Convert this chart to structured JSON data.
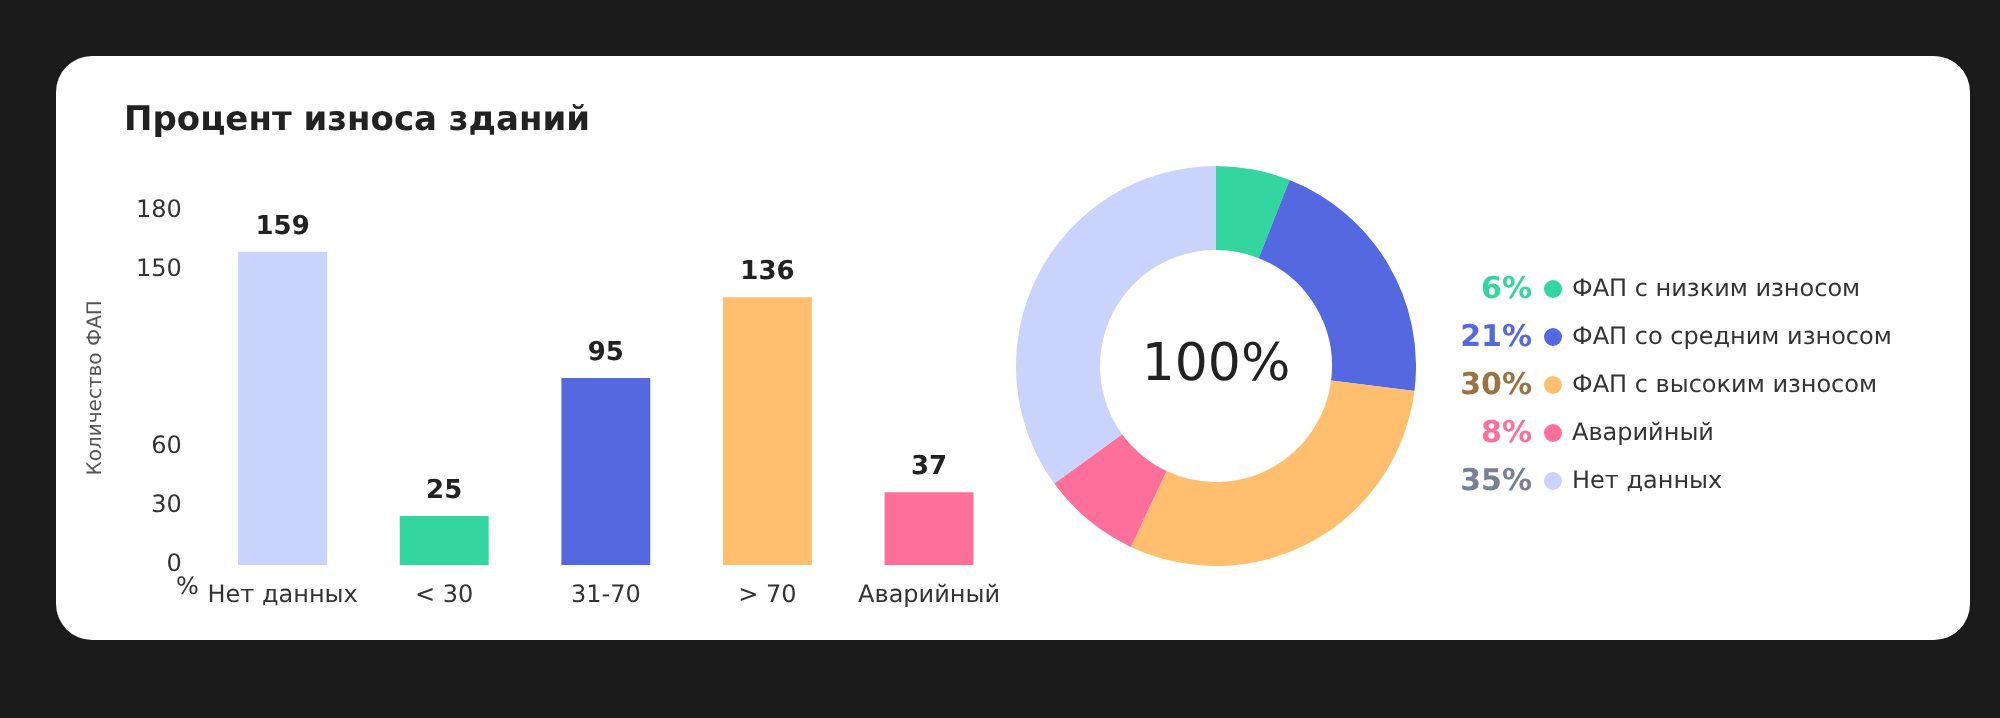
{
  "chart_data": [
    {
      "type": "bar",
      "title": "Процент износа зданий",
      "ylabel": "Количество ФАП",
      "annotations": [
        "%"
      ],
      "categories": [
        "Нет данных",
        "< 30",
        "31-70",
        "> 70",
        "Аварийный"
      ],
      "values": [
        159,
        25,
        95,
        136,
        37
      ],
      "colors": [
        "#c9d3fb",
        "#33d69f",
        "#5468e0",
        "#ffbf6e",
        "#ff6f9c"
      ],
      "ylim": [
        0,
        180
      ],
      "yticks": [
        0,
        30,
        60,
        150,
        180
      ],
      "data_labels": true
    },
    {
      "type": "donut",
      "annotations": [
        "100%"
      ],
      "categories": [
        "ФАП с низким износом",
        "ФАП со средним износом",
        "ФАП с высоким износом",
        "Аварийный",
        "Нет данных"
      ],
      "values": [
        6,
        21,
        30,
        8,
        35
      ],
      "value_labels": [
        "6%",
        "21%",
        "30%",
        "8%",
        "35%"
      ],
      "colors": [
        "#33d69f",
        "#5468e0",
        "#ffbf6e",
        "#ff6f9c",
        "#c9d3fb"
      ],
      "legend": "right"
    }
  ]
}
